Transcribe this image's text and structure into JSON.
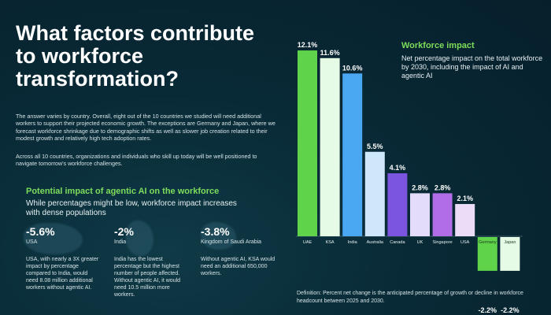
{
  "title": "What factors contribute to workforce transformation?",
  "paragraph1": "The answer varies by country. Overall, eight out of the 10 countries we studied will need additional workers to support their projected economic growth. The exceptions are Germany and Japan, where we forecast workforce shrinkage due to demographic shifts as well as slower job creation related to their modest growth and relatively high tech adoption rates.",
  "paragraph2": "Across all 10 countries, organizations and individuals who skill up today will be well positioned to navigate tomorrow's workforce challenges.",
  "impact": {
    "heading": "Potential impact of agentic AI on the workforce",
    "subheading": "While percentages might be low, workforce impact increases with dense populations",
    "stats": [
      {
        "value": "-5.6%",
        "country": "USA",
        "description": "USA, with nearly a 3X greater impact by percentage compared to India, would need 8.08 million additional workers without agentic AI."
      },
      {
        "value": "-2%",
        "country": "India",
        "description": "India has the lowest percentage but the highest number of people affected. Without agentic AI, it would need 10.5 million more workers."
      },
      {
        "value": "-3.8%",
        "country": "Kingdom of Saudi Arabia",
        "description": "Without agentic AI, KSA would need an additional 650,000 workers."
      }
    ]
  },
  "workforce_impact": {
    "title": "Workforce impact",
    "subtitle": "Net percentage impact on the total workforce by 2030, including the impact of AI and agentic AI"
  },
  "definition": "Definition: Percent net change is the anticipated percentage of growth or decline in workforce headcount between 2025 and 2030.",
  "chart_data": {
    "type": "bar",
    "title": "Workforce impact",
    "subtitle": "Net percentage impact on the total workforce by 2030, including the impact of AI and agentic AI",
    "categories": [
      "UAE",
      "KSA",
      "India",
      "Australia",
      "Canada",
      "UK",
      "Singapore",
      "USA",
      "Germany",
      "Japan"
    ],
    "values": [
      12.1,
      11.6,
      10.6,
      5.5,
      4.1,
      2.8,
      2.8,
      2.1,
      -2.2,
      -2.2
    ],
    "value_labels": [
      "12.1%",
      "11.6%",
      "10.6%",
      "5.5%",
      "4.1%",
      "2.8%",
      "2.8%",
      "2.1%",
      "-2.2%",
      "-2.2%"
    ],
    "colors": [
      "#5fd34a",
      "#e6fbe6",
      "#4aa8f2",
      "#cfe7fb",
      "#7b55e0",
      "#e4dcfb",
      "#b06de6",
      "#ecdcf7",
      "#5fd34a",
      "#e6fbe6"
    ],
    "xlabel": "",
    "ylabel": "",
    "ylim": [
      -2.2,
      12.1
    ]
  }
}
